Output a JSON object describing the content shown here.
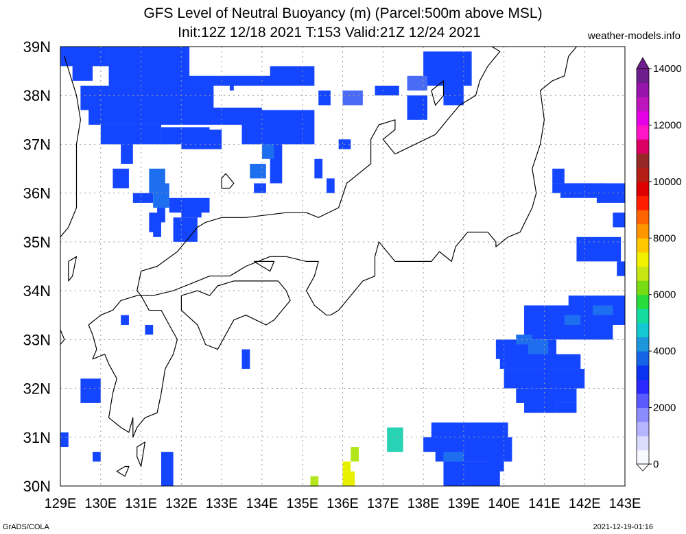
{
  "title": {
    "line1": "GFS Level of Neutral Buoyancy (m) (Parcel:500m above MSL)",
    "line2": "Init:12Z 12/18 2021 T:153 Valid:21Z 12/24 2021"
  },
  "site": "weather-models.info",
  "footer": {
    "left": "GrADS/COLA",
    "right": "2021-12-19-01:16"
  },
  "map": {
    "lon_range": [
      129,
      143
    ],
    "lat_range": [
      30,
      39
    ],
    "lon_labels": [
      "129E",
      "130E",
      "131E",
      "132E",
      "133E",
      "134E",
      "135E",
      "136E",
      "137E",
      "138E",
      "139E",
      "140E",
      "141E",
      "142E",
      "143E"
    ],
    "lat_labels": [
      "30N",
      "31N",
      "32N",
      "33N",
      "34N",
      "35N",
      "36N",
      "37N",
      "38N",
      "39N"
    ]
  },
  "colorbar": {
    "labels": [
      "0",
      "2000",
      "4000",
      "6000",
      "8000",
      "10000",
      "12000",
      "14000"
    ],
    "colors": [
      "#f8f8ff",
      "#dcdcff",
      "#b4b4ff",
      "#8c8cff",
      "#5a5aff",
      "#2828ff",
      "#0a32f0",
      "#1464e6",
      "#1e96dc",
      "#14c8d2",
      "#14dca0",
      "#28dc3c",
      "#78dc14",
      "#c8e614",
      "#f0f000",
      "#ffc800",
      "#ff9600",
      "#ff6400",
      "#ff1e00",
      "#dc0000",
      "#b41e14",
      "#962828",
      "#dc0064",
      "#ff14c8",
      "#e600e6",
      "#be14be",
      "#9614aa",
      "#6e1e8c"
    ]
  },
  "palette": {
    "blue": "#1446ff",
    "mid_blue": "#1e6ef0",
    "light_blue": "#4a6cf5",
    "cyan": "#28d2b4",
    "yellow": "#e8f000",
    "yellow_green": "#b4e61e",
    "coast": "#000000",
    "grid": "#999999"
  },
  "fields": [
    {
      "c": "blue",
      "cells": [
        [
          129.0,
          38.6,
          1.2,
          0.4
        ],
        [
          130.2,
          38.2,
          2.0,
          0.8
        ],
        [
          129.5,
          37.7,
          3.3,
          0.5
        ],
        [
          129.7,
          37.4,
          4.3,
          0.35
        ],
        [
          130.0,
          37.0,
          1.5,
          0.4
        ],
        [
          131.5,
          37.0,
          1.2,
          0.35
        ],
        [
          132.0,
          36.9,
          1.0,
          0.4
        ],
        [
          133.5,
          37.0,
          1.8,
          0.7
        ],
        [
          131.0,
          38.2,
          3.3,
          0.2
        ],
        [
          130.5,
          38.4,
          0.8,
          0.6
        ],
        [
          134.2,
          38.2,
          1.1,
          0.4
        ],
        [
          129.3,
          38.3,
          0.5,
          0.3
        ],
        [
          130.5,
          36.6,
          0.3,
          0.5
        ],
        [
          130.3,
          36.1,
          0.4,
          0.4
        ],
        [
          130.8,
          35.8,
          0.5,
          0.2
        ],
        [
          134.2,
          36.2,
          0.3,
          0.8
        ],
        [
          133.8,
          36.0,
          0.3,
          0.2
        ],
        [
          135.3,
          36.3,
          0.2,
          0.4
        ],
        [
          135.6,
          36.0,
          0.2,
          0.3
        ],
        [
          138.0,
          38.2,
          1.2,
          0.7
        ],
        [
          138.5,
          37.8,
          0.5,
          0.5
        ],
        [
          137.6,
          37.5,
          0.5,
          0.5
        ],
        [
          136.8,
          38.0,
          0.6,
          0.2
        ],
        [
          135.4,
          37.8,
          0.3,
          0.3
        ],
        [
          135.9,
          36.9,
          0.3,
          0.2
        ],
        [
          141.4,
          35.9,
          1.1,
          0.3
        ],
        [
          141.2,
          36.0,
          1.0,
          0.2
        ],
        [
          141.2,
          36.2,
          0.3,
          0.3
        ],
        [
          142.3,
          35.8,
          0.7,
          0.4
        ],
        [
          142.7,
          35.3,
          0.3,
          0.3
        ],
        [
          141.8,
          34.6,
          1.1,
          0.5
        ],
        [
          142.8,
          34.3,
          0.2,
          0.3
        ],
        [
          140.5,
          33.0,
          2.2,
          0.7
        ],
        [
          141.6,
          33.3,
          1.4,
          0.6
        ],
        [
          142.0,
          33.0,
          0.6,
          0.3
        ],
        [
          139.8,
          32.6,
          1.5,
          0.4
        ],
        [
          139.9,
          32.4,
          2.0,
          0.3
        ],
        [
          140.0,
          32.0,
          2.0,
          0.4
        ],
        [
          140.3,
          31.7,
          1.5,
          0.3
        ],
        [
          140.5,
          31.5,
          0.8,
          0.25
        ],
        [
          141.3,
          31.5,
          0.5,
          0.2
        ],
        [
          138.2,
          30.9,
          1.9,
          0.4
        ],
        [
          138.0,
          30.7,
          1.4,
          0.3
        ],
        [
          138.3,
          30.5,
          1.9,
          0.5
        ],
        [
          139.6,
          30.9,
          0.3,
          0.2
        ],
        [
          139.8,
          30.6,
          0.3,
          0.3
        ],
        [
          138.5,
          30.0,
          1.4,
          0.5
        ],
        [
          139.6,
          30.3,
          0.4,
          0.3
        ],
        [
          129.5,
          31.7,
          0.5,
          0.5
        ],
        [
          129.0,
          30.8,
          0.2,
          0.3
        ],
        [
          129.8,
          30.5,
          0.2,
          0.2
        ],
        [
          131.5,
          30.0,
          0.3,
          0.7
        ],
        [
          133.5,
          32.4,
          0.2,
          0.4
        ],
        [
          131.1,
          33.1,
          0.2,
          0.2
        ],
        [
          130.5,
          33.3,
          0.2,
          0.2
        ],
        [
          131.3,
          35.1,
          0.2,
          0.3
        ],
        [
          131.2,
          35.2,
          0.3,
          0.4
        ],
        [
          131.4,
          35.4,
          0.2,
          0.5
        ],
        [
          131.7,
          35.6,
          1.0,
          0.3
        ],
        [
          131.8,
          35.0,
          0.6,
          0.5
        ],
        [
          132.0,
          35.5,
          0.5,
          0.3
        ],
        [
          133.2,
          38.1,
          0.1,
          0.2
        ]
      ]
    },
    {
      "c": "mid_blue",
      "cells": [
        [
          131.3,
          35.7,
          0.4,
          0.5
        ],
        [
          131.2,
          36.0,
          0.4,
          0.5
        ],
        [
          133.7,
          36.3,
          0.4,
          0.3
        ],
        [
          134.0,
          36.7,
          0.3,
          0.3
        ],
        [
          141.5,
          33.3,
          0.4,
          0.2
        ],
        [
          142.2,
          33.5,
          0.5,
          0.2
        ],
        [
          140.6,
          32.7,
          0.5,
          0.3
        ],
        [
          140.3,
          32.9,
          0.4,
          0.2
        ],
        [
          138.5,
          30.5,
          0.5,
          0.2
        ]
      ]
    },
    {
      "c": "light_blue",
      "cells": [
        [
          136.0,
          37.8,
          0.5,
          0.3
        ],
        [
          137.6,
          38.1,
          0.5,
          0.3
        ]
      ]
    },
    {
      "c": "cyan",
      "cells": [
        [
          137.1,
          30.7,
          0.4,
          0.5
        ]
      ]
    },
    {
      "c": "yellow_green",
      "cells": [
        [
          135.2,
          30.0,
          0.2,
          0.2
        ],
        [
          136.2,
          30.5,
          0.2,
          0.3
        ]
      ]
    },
    {
      "c": "yellow",
      "cells": [
        [
          136.0,
          30.0,
          0.3,
          0.3
        ],
        [
          136.0,
          30.3,
          0.2,
          0.2
        ]
      ]
    }
  ],
  "coastlines": [
    [
      [
        135.7,
        33.5
      ],
      [
        135.9,
        33.6
      ],
      [
        136.2,
        33.9
      ],
      [
        136.5,
        34.2
      ],
      [
        136.8,
        34.3
      ],
      [
        136.8,
        34.7
      ],
      [
        136.9,
        35.0
      ],
      [
        137.1,
        34.8
      ],
      [
        137.3,
        34.6
      ],
      [
        137.6,
        34.6
      ],
      [
        138.2,
        34.6
      ],
      [
        138.4,
        34.8
      ],
      [
        138.7,
        34.6
      ],
      [
        138.8,
        34.9
      ],
      [
        139.1,
        35.2
      ],
      [
        139.6,
        35.2
      ],
      [
        139.8,
        35.0
      ],
      [
        139.8,
        34.9
      ],
      [
        140.1,
        35.1
      ],
      [
        140.4,
        35.2
      ],
      [
        140.7,
        35.7
      ],
      [
        140.8,
        36.0
      ],
      [
        140.7,
        36.5
      ],
      [
        140.9,
        37.0
      ],
      [
        141.0,
        37.5
      ],
      [
        140.9,
        38.1
      ],
      [
        141.2,
        38.3
      ],
      [
        141.5,
        38.4
      ],
      [
        141.6,
        38.8
      ],
      [
        141.8,
        39.0
      ]
    ],
    [
      [
        139.7,
        39.0
      ],
      [
        139.9,
        38.9
      ],
      [
        139.6,
        38.6
      ],
      [
        139.4,
        38.3
      ],
      [
        139.3,
        38.0
      ],
      [
        138.9,
        37.8
      ],
      [
        138.6,
        37.5
      ],
      [
        138.3,
        37.2
      ],
      [
        137.8,
        37.0
      ],
      [
        137.3,
        36.8
      ],
      [
        137.1,
        37.0
      ],
      [
        137.0,
        37.1
      ],
      [
        137.3,
        37.3
      ],
      [
        137.3,
        37.5
      ],
      [
        136.9,
        37.4
      ],
      [
        136.7,
        37.1
      ],
      [
        136.7,
        36.6
      ],
      [
        136.1,
        36.2
      ],
      [
        135.9,
        35.7
      ],
      [
        135.4,
        35.5
      ],
      [
        135.1,
        35.6
      ],
      [
        134.6,
        35.6
      ],
      [
        133.6,
        35.5
      ],
      [
        133.0,
        35.5
      ],
      [
        132.6,
        35.4
      ],
      [
        132.4,
        35.3
      ],
      [
        131.9,
        34.8
      ],
      [
        131.4,
        34.5
      ],
      [
        131.0,
        34.4
      ],
      [
        130.9,
        34.0
      ],
      [
        131.0,
        33.9
      ],
      [
        131.3,
        33.9
      ],
      [
        131.8,
        34.0
      ],
      [
        132.4,
        34.2
      ],
      [
        132.7,
        34.3
      ],
      [
        133.2,
        34.3
      ],
      [
        133.6,
        34.5
      ],
      [
        134.2,
        34.7
      ],
      [
        134.6,
        34.7
      ],
      [
        135.1,
        34.6
      ],
      [
        135.4,
        34.6
      ],
      [
        135.3,
        34.3
      ],
      [
        135.1,
        34.0
      ],
      [
        135.3,
        33.7
      ],
      [
        135.6,
        33.5
      ],
      [
        135.7,
        33.5
      ]
    ],
    [
      [
        131.0,
        33.9
      ],
      [
        130.9,
        33.9
      ],
      [
        130.5,
        33.8
      ],
      [
        130.3,
        33.6
      ],
      [
        130.0,
        33.5
      ],
      [
        129.7,
        33.3
      ],
      [
        129.8,
        33.1
      ],
      [
        129.9,
        32.8
      ],
      [
        129.8,
        32.6
      ],
      [
        130.1,
        32.7
      ],
      [
        130.2,
        32.5
      ],
      [
        130.4,
        32.2
      ],
      [
        130.3,
        31.9
      ],
      [
        130.2,
        31.4
      ],
      [
        130.5,
        31.2
      ],
      [
        130.7,
        31.1
      ],
      [
        130.8,
        31.4
      ],
      [
        130.8,
        31.0
      ],
      [
        130.9,
        31.2
      ],
      [
        131.1,
        31.4
      ],
      [
        131.4,
        31.5
      ],
      [
        131.5,
        31.9
      ],
      [
        131.6,
        32.4
      ],
      [
        131.8,
        32.7
      ],
      [
        131.9,
        33.0
      ],
      [
        131.7,
        33.3
      ],
      [
        131.5,
        33.6
      ],
      [
        131.2,
        33.6
      ],
      [
        131.0,
        33.9
      ]
    ],
    [
      [
        132.0,
        33.9
      ],
      [
        132.4,
        34.0
      ],
      [
        132.7,
        33.9
      ],
      [
        132.9,
        34.1
      ],
      [
        133.3,
        34.2
      ],
      [
        133.6,
        34.2
      ],
      [
        134.0,
        34.2
      ],
      [
        134.4,
        34.2
      ],
      [
        134.6,
        34.0
      ],
      [
        134.7,
        33.8
      ],
      [
        134.3,
        33.4
      ],
      [
        134.1,
        33.3
      ],
      [
        133.6,
        33.5
      ],
      [
        133.3,
        33.4
      ],
      [
        132.9,
        32.8
      ],
      [
        132.6,
        32.9
      ],
      [
        132.4,
        33.3
      ],
      [
        132.0,
        33.6
      ],
      [
        132.0,
        33.9
      ]
    ],
    [
      [
        129.1,
        38.8
      ],
      [
        129.4,
        38.0
      ],
      [
        129.5,
        37.5
      ],
      [
        129.4,
        37.0
      ],
      [
        129.4,
        36.4
      ],
      [
        129.4,
        35.7
      ],
      [
        129.2,
        35.3
      ],
      [
        129.0,
        35.1
      ]
    ],
    [
      [
        133.1,
        36.4
      ],
      [
        133.2,
        36.3
      ],
      [
        133.3,
        36.2
      ],
      [
        133.2,
        36.1
      ],
      [
        133.0,
        36.1
      ],
      [
        133.0,
        36.3
      ],
      [
        133.1,
        36.4
      ]
    ],
    [
      [
        129.2,
        34.6
      ],
      [
        129.4,
        34.7
      ],
      [
        129.3,
        34.3
      ],
      [
        129.2,
        34.2
      ],
      [
        129.2,
        34.6
      ]
    ],
    [
      [
        130.9,
        30.8
      ],
      [
        131.1,
        30.9
      ],
      [
        131.0,
        30.4
      ],
      [
        130.9,
        30.6
      ],
      [
        130.9,
        30.8
      ]
    ],
    [
      [
        130.6,
        30.4
      ],
      [
        130.7,
        30.4
      ],
      [
        130.6,
        30.2
      ],
      [
        130.4,
        30.3
      ],
      [
        130.6,
        30.4
      ]
    ],
    [
      [
        138.2,
        38.1
      ],
      [
        138.5,
        38.3
      ],
      [
        138.5,
        38.0
      ],
      [
        138.3,
        37.8
      ],
      [
        138.2,
        38.1
      ]
    ],
    [
      [
        133.8,
        34.6
      ],
      [
        134.3,
        34.6
      ],
      [
        134.2,
        34.4
      ],
      [
        133.8,
        34.6
      ]
    ],
    [
      [
        129.0,
        33.2
      ],
      [
        129.1,
        33.0
      ],
      [
        129.0,
        32.9
      ]
    ]
  ]
}
